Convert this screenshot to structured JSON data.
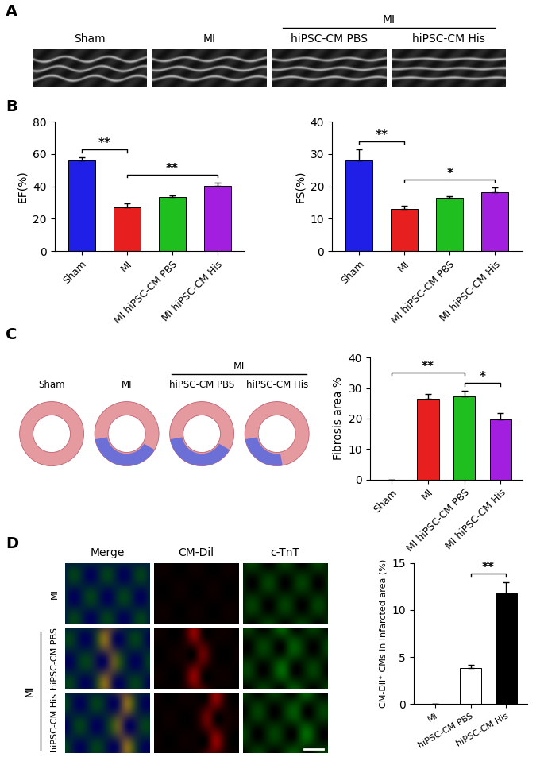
{
  "panel_A": {
    "letter": "A",
    "image_labels": [
      "Sham",
      "MI",
      "hiPSC-CM PBS",
      "hiPSC-CM His"
    ],
    "group_label": "MI"
  },
  "panel_B": {
    "letter": "B"
  },
  "panel_C": {
    "letter": "C",
    "image_labels": [
      "Sham",
      "MI",
      "hiPSC-CM PBS",
      "hiPSC-CM His"
    ],
    "group_label": "MI"
  },
  "panel_D": {
    "letter": "D",
    "column_labels": [
      "Merge",
      "CM-Dil",
      "c-TnT"
    ],
    "row_labels": [
      "MI",
      "hiPSC-CM PBS",
      "hiPSC-CM His"
    ],
    "group_label": "MI"
  },
  "chart_data": [
    {
      "type": "bar",
      "ylabel": "EF(%)",
      "categories": [
        "Sham",
        "MI",
        "MI hiPSC-CM PBS",
        "MI hiPSC-CM His"
      ],
      "values": [
        56,
        27,
        33.5,
        40.5
      ],
      "errors": [
        2,
        2.5,
        1,
        2
      ],
      "colors": [
        "#1f1fe8",
        "#e81f1f",
        "#1fbf1f",
        "#a31fe0"
      ],
      "ylim": [
        0,
        80
      ],
      "yticks": [
        0,
        20,
        40,
        60,
        80
      ],
      "significance": [
        {
          "from": 0,
          "to": 1,
          "label": "**"
        },
        {
          "from": 1,
          "to": 3,
          "label": "**"
        }
      ]
    },
    {
      "type": "bar",
      "ylabel": "FS(%)",
      "categories": [
        "Sham",
        "MI",
        "MI hiPSC-CM PBS",
        "MI hiPSC-CM His"
      ],
      "values": [
        28,
        13,
        16.5,
        18.3
      ],
      "errors": [
        3.5,
        1,
        0.5,
        1.5
      ],
      "colors": [
        "#1f1fe8",
        "#e81f1f",
        "#1fbf1f",
        "#a31fe0"
      ],
      "ylim": [
        0,
        40
      ],
      "yticks": [
        0,
        10,
        20,
        30,
        40
      ],
      "significance": [
        {
          "from": 0,
          "to": 1,
          "label": "**"
        },
        {
          "from": 1,
          "to": 3,
          "label": "*"
        }
      ]
    },
    {
      "type": "bar",
      "ylabel": "Fibrosis area %",
      "categories": [
        "Sham",
        "MI",
        "MI hiPSC-CM PBS",
        "MI hiPSC-CM His"
      ],
      "values": [
        0,
        26.5,
        27.2,
        19.6
      ],
      "errors": [
        0,
        1.5,
        2,
        2.3
      ],
      "colors": [
        "#1f1fe8",
        "#e81f1f",
        "#1fbf1f",
        "#a31fe0"
      ],
      "ylim": [
        0,
        40
      ],
      "yticks": [
        0,
        10,
        20,
        30,
        40
      ],
      "significance": [
        {
          "from": 2,
          "to": 3,
          "label": "*"
        },
        {
          "from": 0,
          "to": 2,
          "label": "**"
        }
      ]
    },
    {
      "type": "bar",
      "ylabel": "CM-Dil⁺ CMs in infarcted area (%)",
      "categories": [
        "MI",
        "hiPSC-CM PBS",
        "hiPSC-CM His"
      ],
      "values": [
        0,
        3.8,
        11.8
      ],
      "errors": [
        0,
        0.4,
        1.2
      ],
      "colors": [
        "#ffffff",
        "#ffffff",
        "#000000"
      ],
      "ylim": [
        0,
        15
      ],
      "yticks": [
        0,
        5,
        10,
        15
      ],
      "significance": [
        {
          "from": 1,
          "to": 2,
          "label": "**"
        }
      ]
    }
  ]
}
